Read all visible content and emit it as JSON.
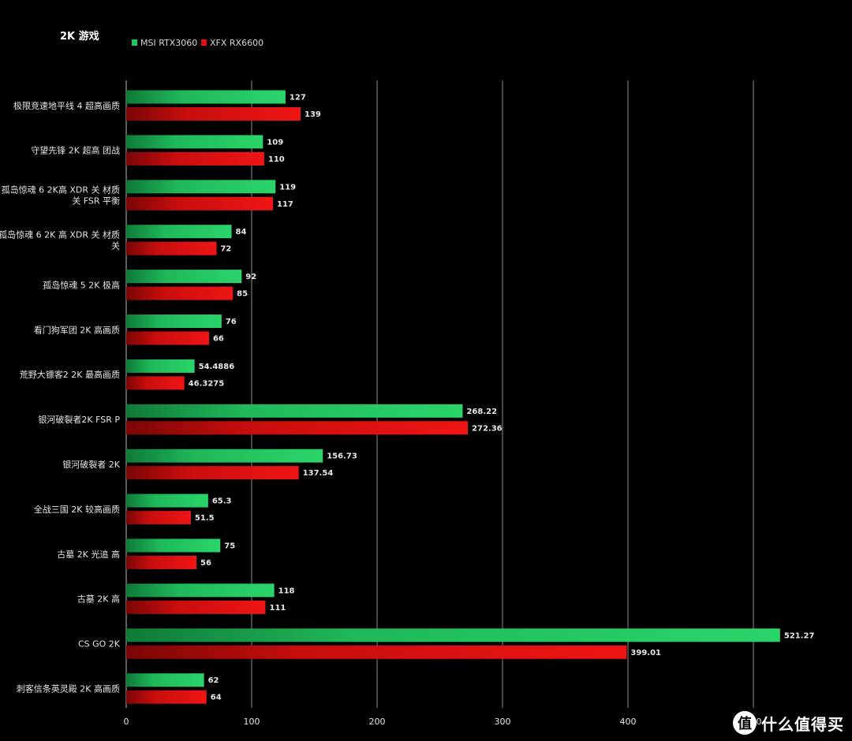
{
  "chart_data": {
    "type": "bar",
    "orientation": "horizontal",
    "title": "2K 游戏",
    "categories": [
      "极限竞速地平线 4 超高画质",
      "守望先锋 2K 超高 团战",
      "孤岛惊魂 6 2K高 XDR 关 材质关 FSR 平衡",
      "孤岛惊魂 6 2K 高 XDR 关 材质关",
      "孤岛惊魂 5 2K 极高",
      "看门狗军团 2K 高画质",
      "荒野大镖客2 2K 最高画质",
      "银河破裂者2K FSR P",
      "银河破裂者 2K",
      "全战三国 2K 较高画质",
      "古墓  2K 光追 高",
      "古墓 2K 高",
      "CS GO 2K",
      "刺客信条英灵殿 2K 高画质"
    ],
    "category_lines": [
      [
        "极限竞速地平线 4 超高画质"
      ],
      [
        "守望先锋 2K 超高 团战"
      ],
      [
        "孤岛惊魂 6 2K高 XDR 关 材质",
        "关 FSR 平衡"
      ],
      [
        "孤岛惊魂 6 2K 高 XDR 关 材质",
        "关"
      ],
      [
        "孤岛惊魂 5 2K 极高"
      ],
      [
        "看门狗军团 2K 高画质"
      ],
      [
        "荒野大镖客2 2K 最高画质"
      ],
      [
        "银河破裂者2K FSR P"
      ],
      [
        "银河破裂者 2K"
      ],
      [
        "全战三国 2K 较高画质"
      ],
      [
        "古墓  2K 光追 高"
      ],
      [
        "古墓 2K 高"
      ],
      [
        "CS GO 2K"
      ],
      [
        "刺客信条英灵殿 2K 高画质"
      ]
    ],
    "series": [
      {
        "name": "MSI RTX3060",
        "color": "#22c55e",
        "values": [
          127,
          109,
          119,
          84,
          92,
          76,
          54.4886,
          268.22,
          156.73,
          65.3,
          75,
          118,
          521.27,
          62
        ],
        "labels": [
          "127",
          "109",
          "119",
          "84",
          "92",
          "76",
          "54.4886",
          "268.22",
          "156.73",
          "65.3",
          "75",
          "118",
          "521.27",
          "62"
        ]
      },
      {
        "name": "XFX RX6600",
        "color": "#e11010",
        "values": [
          139,
          110,
          117,
          72,
          85,
          66,
          46.3275,
          272.36,
          137.54,
          51.5,
          56,
          111,
          399.01,
          64
        ],
        "labels": [
          "139",
          "110",
          "117",
          "72",
          "85",
          "66",
          "46.3275",
          "272.36",
          "137.54",
          "51.5",
          "56",
          "111",
          "399.01",
          "64"
        ]
      }
    ],
    "xticks": [
      "0",
      "100",
      "200",
      "300",
      "400",
      "500"
    ],
    "xlim": [
      0,
      525
    ],
    "grid": true,
    "legend": "top"
  },
  "watermark": {
    "badge": "值",
    "text": "什么值得买"
  }
}
